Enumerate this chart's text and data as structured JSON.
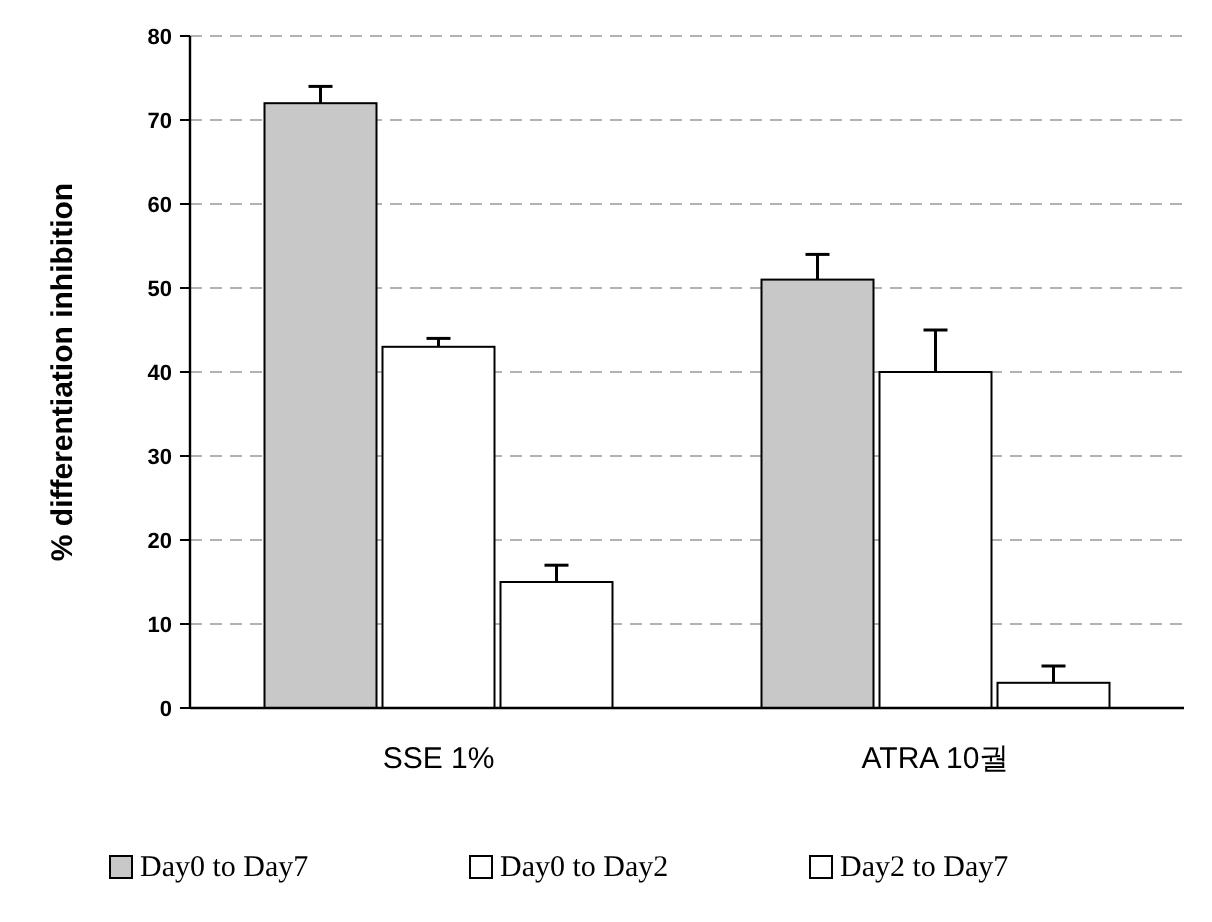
{
  "chart_data": {
    "type": "bar",
    "ylabel": "% differentiation inhibition",
    "categories": [
      "SSE 1%",
      "ATRA 10궐"
    ],
    "series": [
      {
        "name": "Day0 to Day7",
        "color": "#c8c8c8",
        "values": [
          72,
          51
        ],
        "errors": [
          [
            72,
            74
          ],
          [
            51,
            54
          ]
        ]
      },
      {
        "name": "Day0 to Day2",
        "color": "#ffffff",
        "values": [
          43,
          40
        ],
        "errors": [
          [
            43,
            44
          ],
          [
            40,
            45
          ]
        ]
      },
      {
        "name": "Day2 to Day7",
        "color": "#ffffff",
        "values": [
          15,
          3
        ],
        "errors": [
          [
            15,
            17
          ],
          [
            3,
            5
          ]
        ]
      }
    ],
    "ylim": [
      0,
      80
    ],
    "yticks": [
      0,
      10,
      20,
      30,
      40,
      50,
      60,
      70,
      80
    ],
    "grid": "y",
    "legend": "bottom"
  }
}
